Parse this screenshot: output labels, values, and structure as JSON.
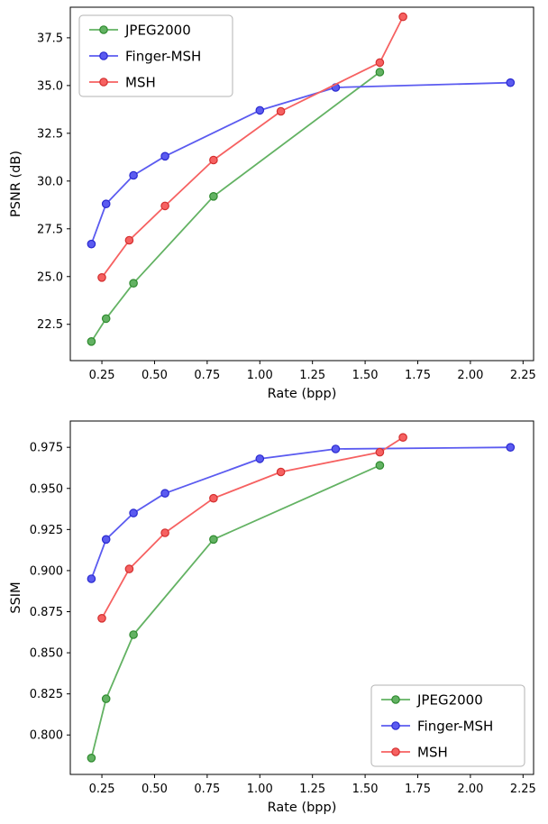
{
  "figure": {
    "background": "#ffffff",
    "axis_color": "#000000",
    "legend_border_color": "#b3b3b3",
    "legend_background": "#ffffff"
  },
  "chart_data": [
    {
      "type": "line",
      "title": "",
      "xlabel": "Rate (bpp)",
      "ylabel": "PSNR (dB)",
      "xlim": [
        0.1,
        2.3
      ],
      "ylim": [
        20.6,
        39.1
      ],
      "xticks": [
        0.25,
        0.5,
        0.75,
        1.0,
        1.25,
        1.5,
        1.75,
        2.0,
        2.25
      ],
      "xtick_labels": [
        "0.25",
        "0.50",
        "0.75",
        "1.00",
        "1.25",
        "1.50",
        "1.75",
        "2.00",
        "2.25"
      ],
      "yticks": [
        22.5,
        25.0,
        27.5,
        30.0,
        32.5,
        35.0,
        37.5
      ],
      "ytick_labels": [
        "22.5",
        "25.0",
        "27.5",
        "30.0",
        "32.5",
        "35.0",
        "37.5"
      ],
      "legend": {
        "position": "upper-left",
        "entries": [
          "JPEG2000",
          "Finger-MSH",
          "MSH"
        ]
      },
      "series": [
        {
          "name": "JPEG2000",
          "color": "#63b263",
          "marker_edge": "#2f8b2f",
          "x": [
            0.2,
            0.27,
            0.4,
            0.78,
            1.57
          ],
          "y": [
            21.6,
            22.8,
            24.65,
            29.2,
            35.7
          ]
        },
        {
          "name": "Finger-MSH",
          "color": "#5b5bf0",
          "marker_edge": "#2a2ad0",
          "x": [
            0.2,
            0.27,
            0.4,
            0.55,
            1.0,
            1.36,
            2.19
          ],
          "y": [
            26.7,
            28.8,
            30.3,
            31.3,
            33.7,
            34.9,
            35.15
          ]
        },
        {
          "name": "MSH",
          "color": "#f66161",
          "marker_edge": "#d32f2f",
          "x": [
            0.25,
            0.38,
            0.55,
            0.78,
            1.1,
            1.57,
            1.68
          ],
          "y": [
            24.95,
            26.9,
            28.7,
            31.1,
            33.65,
            36.2,
            38.6
          ]
        }
      ]
    },
    {
      "type": "line",
      "title": "",
      "xlabel": "Rate (bpp)",
      "ylabel": "SSIM",
      "xlim": [
        0.1,
        2.3
      ],
      "ylim": [
        0.776,
        0.991
      ],
      "xticks": [
        0.25,
        0.5,
        0.75,
        1.0,
        1.25,
        1.5,
        1.75,
        2.0,
        2.25
      ],
      "xtick_labels": [
        "0.25",
        "0.50",
        "0.75",
        "1.00",
        "1.25",
        "1.50",
        "1.75",
        "2.00",
        "2.25"
      ],
      "yticks": [
        0.8,
        0.825,
        0.85,
        0.875,
        0.9,
        0.925,
        0.95,
        0.975
      ],
      "ytick_labels": [
        "0.800",
        "0.825",
        "0.850",
        "0.875",
        "0.900",
        "0.925",
        "0.950",
        "0.975"
      ],
      "legend": {
        "position": "lower-right",
        "entries": [
          "JPEG2000",
          "Finger-MSH",
          "MSH"
        ]
      },
      "series": [
        {
          "name": "JPEG2000",
          "color": "#63b263",
          "marker_edge": "#2f8b2f",
          "x": [
            0.2,
            0.27,
            0.4,
            0.78,
            1.57
          ],
          "y": [
            0.786,
            0.822,
            0.861,
            0.919,
            0.964
          ]
        },
        {
          "name": "Finger-MSH",
          "color": "#5b5bf0",
          "marker_edge": "#2a2ad0",
          "x": [
            0.2,
            0.27,
            0.4,
            0.55,
            1.0,
            1.36,
            2.19
          ],
          "y": [
            0.895,
            0.919,
            0.935,
            0.947,
            0.968,
            0.974,
            0.975
          ]
        },
        {
          "name": "MSH",
          "color": "#f66161",
          "marker_edge": "#d32f2f",
          "x": [
            0.25,
            0.38,
            0.55,
            0.78,
            1.1,
            1.57,
            1.68
          ],
          "y": [
            0.871,
            0.901,
            0.923,
            0.944,
            0.96,
            0.972,
            0.981
          ]
        }
      ]
    }
  ]
}
